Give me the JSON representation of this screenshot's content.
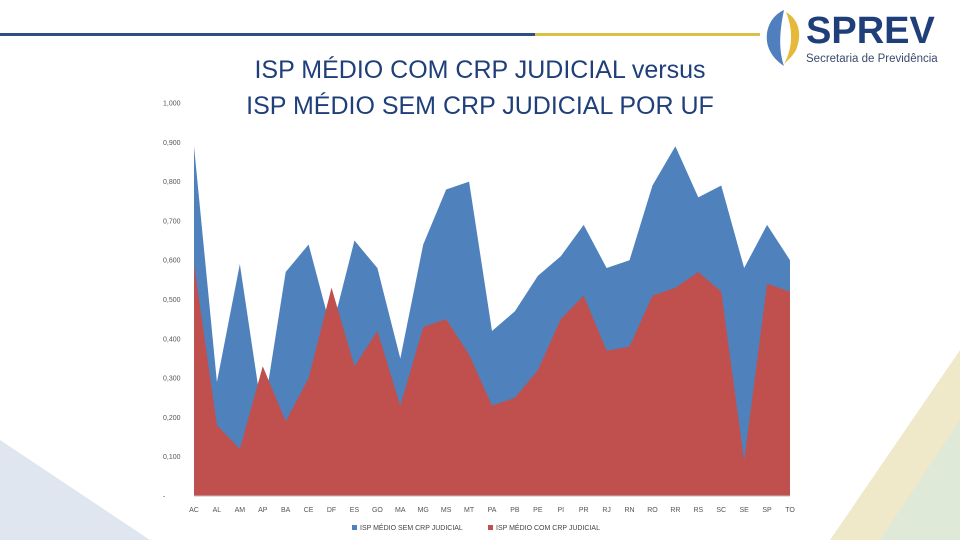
{
  "header": {
    "title_line1": "ISP MÉDIO COM CRP JUDICIAL versus",
    "title_line2": "ISP MÉDIO SEM CRP JUDICIAL POR UF"
  },
  "logo": {
    "wordmark": "SPREV",
    "subtitle": "Secretaria de Previdência",
    "colors": {
      "navy": "#1f3f7a",
      "gold": "#e6b93a",
      "blue": "#4f7fbf"
    }
  },
  "colors": {
    "series_sem": "#4f81bd",
    "series_com": "#c0504d",
    "accent_line": "#2f4e86",
    "accent_gold": "#d8c04a"
  },
  "chart_data": {
    "type": "area",
    "categories": [
      "AC",
      "AL",
      "AM",
      "AP",
      "BA",
      "CE",
      "DF",
      "ES",
      "GO",
      "MA",
      "MG",
      "MS",
      "MT",
      "PA",
      "PB",
      "PE",
      "PI",
      "PR",
      "RJ",
      "RN",
      "RO",
      "RR",
      "RS",
      "SC",
      "SE",
      "SP",
      "TO"
    ],
    "series": [
      {
        "name": "ISP MÉDIO SEM CRP JUDICIAL",
        "values": [
          0.89,
          0.29,
          0.59,
          0.2,
          0.57,
          0.64,
          0.42,
          0.65,
          0.58,
          0.35,
          0.64,
          0.78,
          0.8,
          0.42,
          0.47,
          0.56,
          0.61,
          0.69,
          0.58,
          0.6,
          0.79,
          0.89,
          0.76,
          0.79,
          0.58,
          0.69,
          0.6
        ]
      },
      {
        "name": "ISP MÉDIO COM CRP JUDICIAL",
        "values": [
          0.59,
          0.18,
          0.12,
          0.33,
          0.19,
          0.3,
          0.53,
          0.33,
          0.42,
          0.23,
          0.43,
          0.45,
          0.36,
          0.23,
          0.25,
          0.32,
          0.45,
          0.51,
          0.37,
          0.38,
          0.51,
          0.53,
          0.57,
          0.52,
          0.09,
          0.54,
          0.52
        ]
      }
    ],
    "yticks": [
      "-",
      "0,100",
      "0,200",
      "0,300",
      "0,400",
      "0,500",
      "0,600",
      "0,700",
      "0,800",
      "0,900",
      "1,000"
    ],
    "ylim": [
      0,
      1
    ],
    "legend": "bottom",
    "grid": false
  }
}
